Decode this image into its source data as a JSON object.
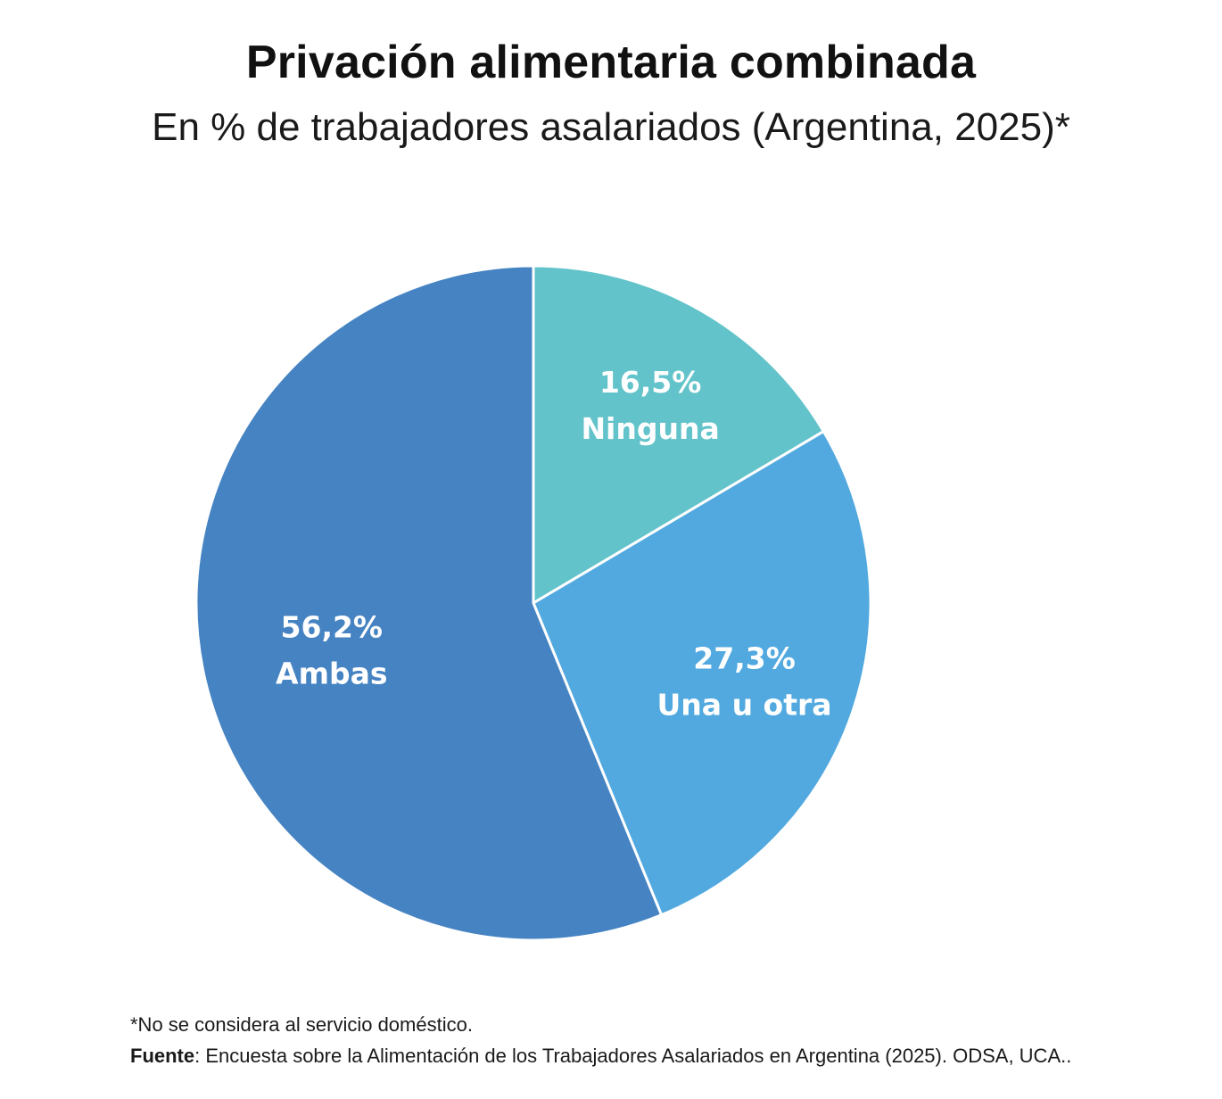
{
  "chart_data": {
    "type": "pie",
    "title": "Privación alimentaria combinada",
    "subtitle": "En % de trabajadores asalariados (Argentina, 2025)*",
    "slices": [
      {
        "label": "Ninguna",
        "value": 16.5,
        "value_label": "16,5%",
        "color": "#63c3ca"
      },
      {
        "label": "Una u otra",
        "value": 27.3,
        "value_label": "27,3%",
        "color": "#52a9df"
      },
      {
        "label": "Ambas",
        "value": 56.2,
        "value_label": "56,2%",
        "color": "#4583c2"
      }
    ],
    "start": "12 o'clock",
    "direction": "clockwise",
    "legend": "none"
  },
  "notes": {
    "footnote": "*No se considera al servicio doméstico.",
    "source_label": "Fuente",
    "source_text": ": Encuesta sobre la Alimentación de los Trabajadores Asalariados en Argentina (2025). ODSA, UCA.."
  }
}
